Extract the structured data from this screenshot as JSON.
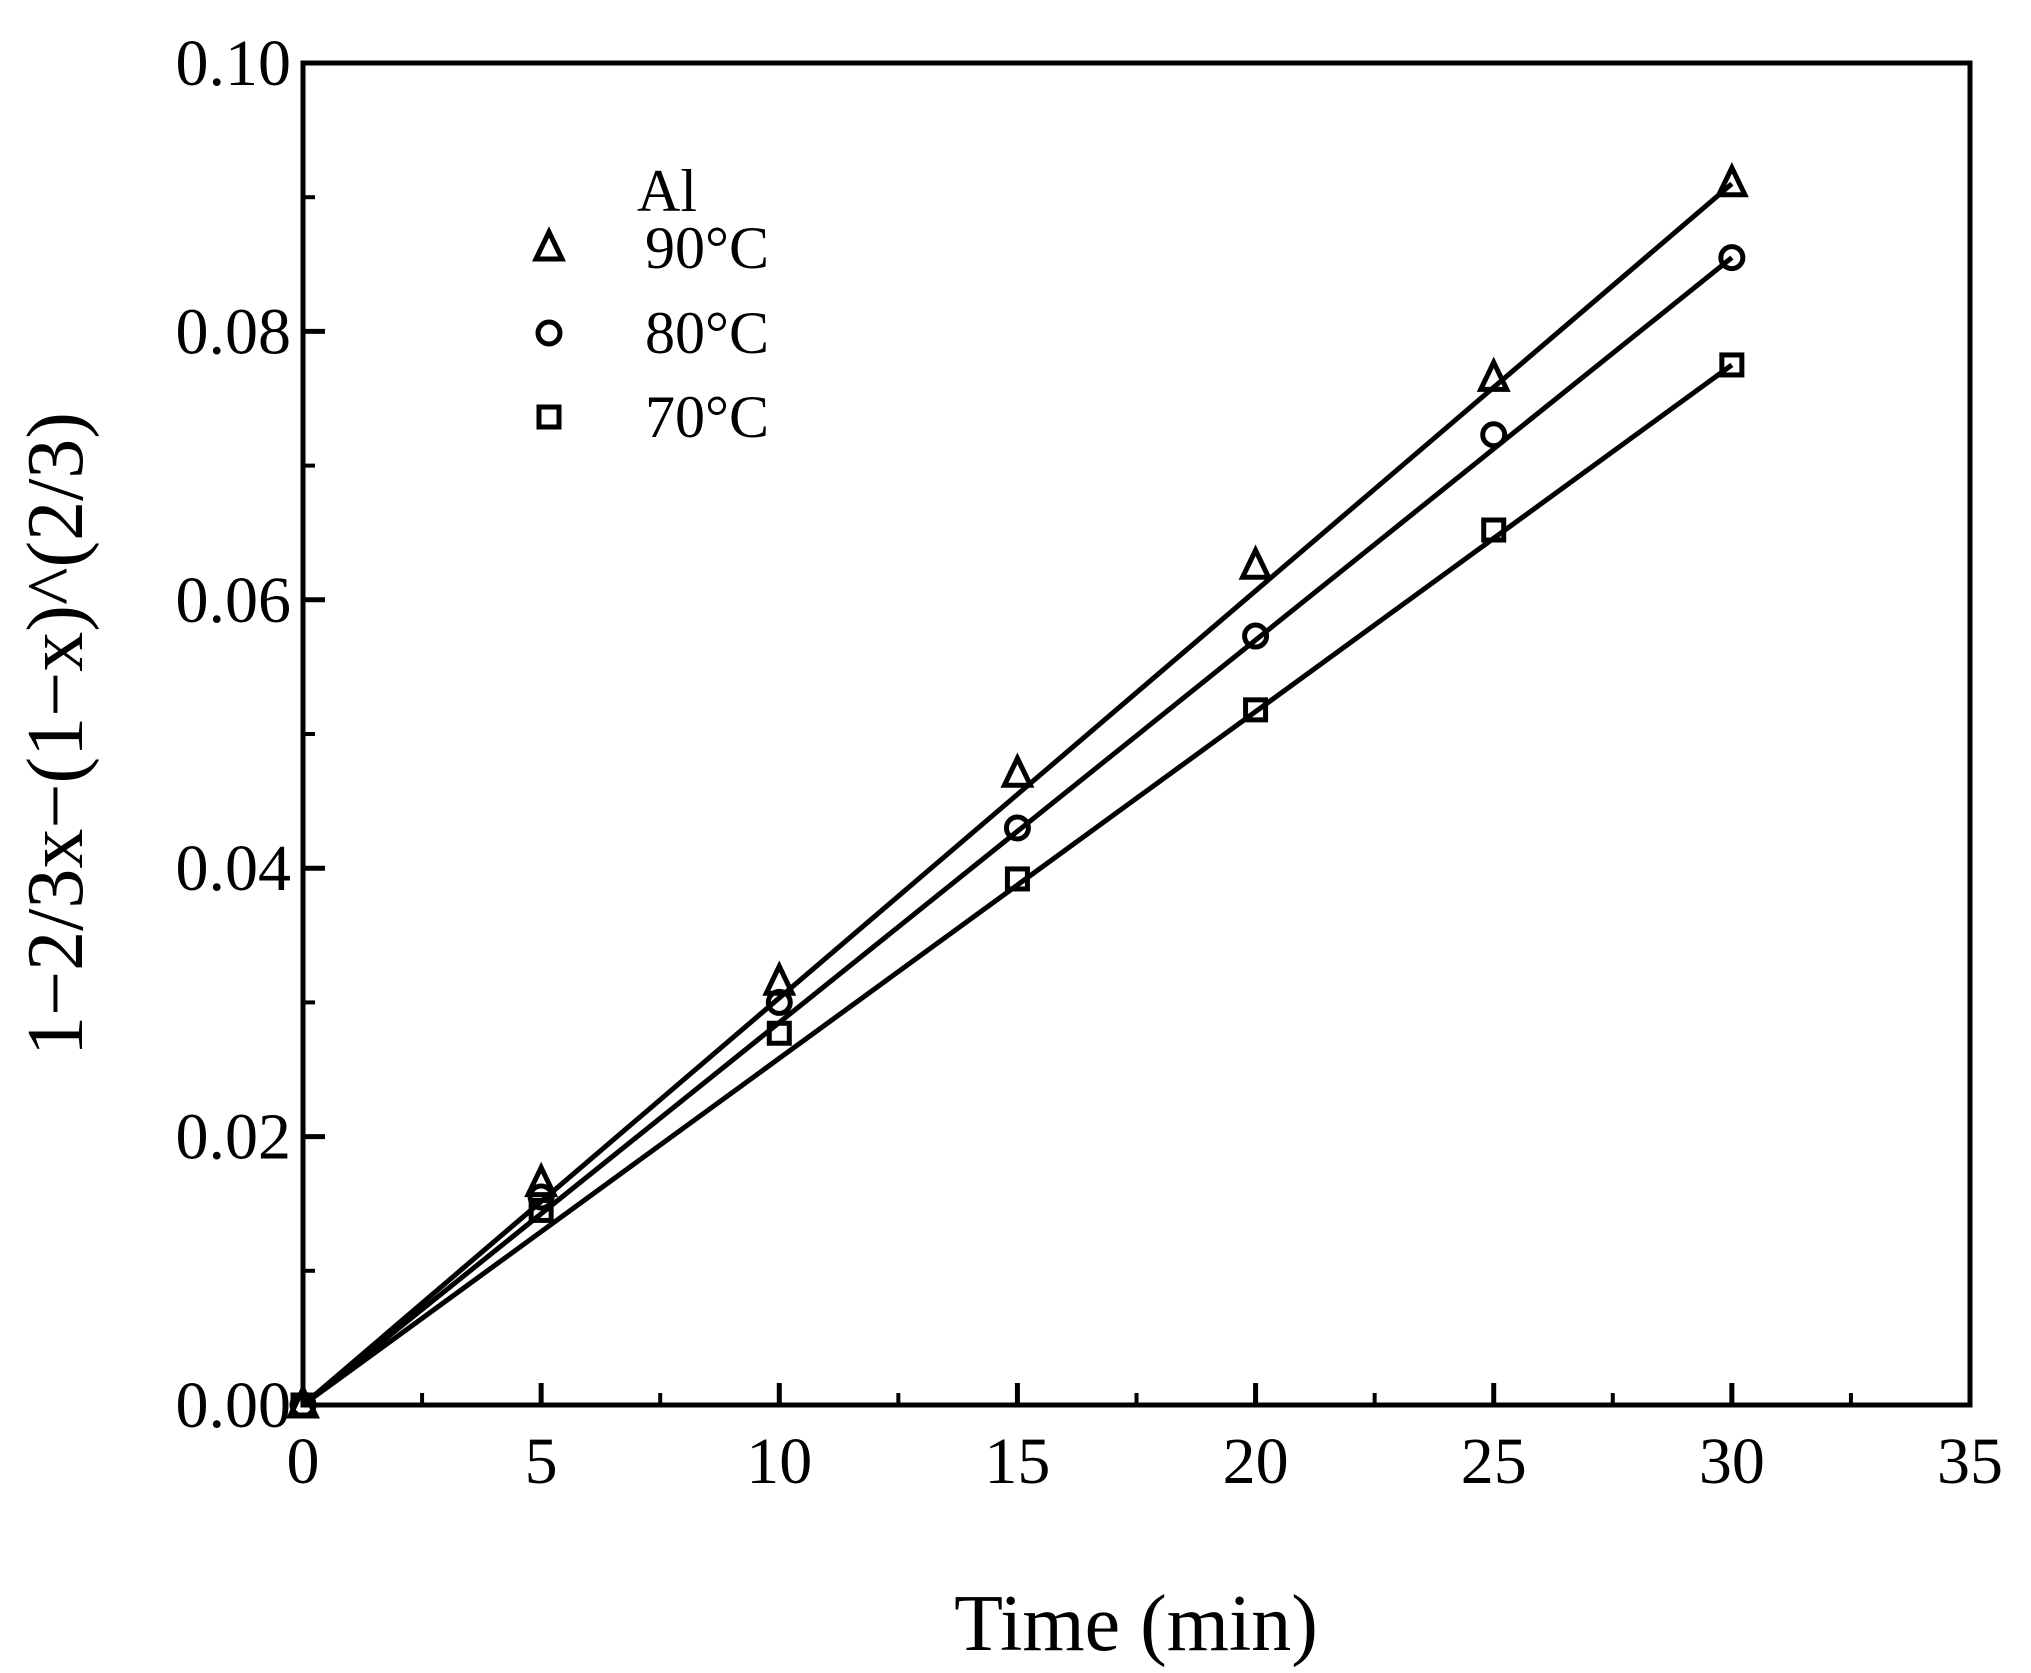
{
  "chart_data": {
    "type": "scatter",
    "title": "",
    "xlabel": "Time (min)",
    "ylabel": "1−2/3x−(1−x)^(2/3)",
    "xlim": [
      0,
      35
    ],
    "ylim": [
      0,
      0.1
    ],
    "x_ticks": [
      0,
      5,
      10,
      15,
      20,
      25,
      30,
      35
    ],
    "x_tick_labels": [
      "0",
      "5",
      "10",
      "15",
      "20",
      "25",
      "30",
      "35"
    ],
    "y_ticks": [
      0,
      0.02,
      0.04,
      0.06,
      0.08,
      0.1
    ],
    "y_tick_labels": [
      "0.00",
      "0.02",
      "0.04",
      "0.06",
      "0.08",
      "0.10"
    ],
    "grid": false,
    "legend_title": "Al",
    "legend_position": "top-left",
    "x": [
      0,
      5,
      10,
      15,
      20,
      25,
      30
    ],
    "series": [
      {
        "name": "90°C",
        "marker": "triangle",
        "values": [
          0,
          0.0165,
          0.0315,
          0.047,
          0.0625,
          0.0765,
          0.091
        ],
        "fit": [
          0,
          0.091
        ]
      },
      {
        "name": "80°C",
        "marker": "circle",
        "values": [
          0,
          0.0155,
          0.03,
          0.043,
          0.0573,
          0.0723,
          0.0855
        ],
        "fit": [
          0,
          0.0855
        ]
      },
      {
        "name": "70°C",
        "marker": "square",
        "values": [
          0,
          0.0145,
          0.0277,
          0.0392,
          0.0518,
          0.0652,
          0.0775
        ],
        "fit": [
          0,
          0.0775
        ]
      }
    ],
    "colors": {
      "axis": "#000000",
      "series": "#000000"
    }
  }
}
